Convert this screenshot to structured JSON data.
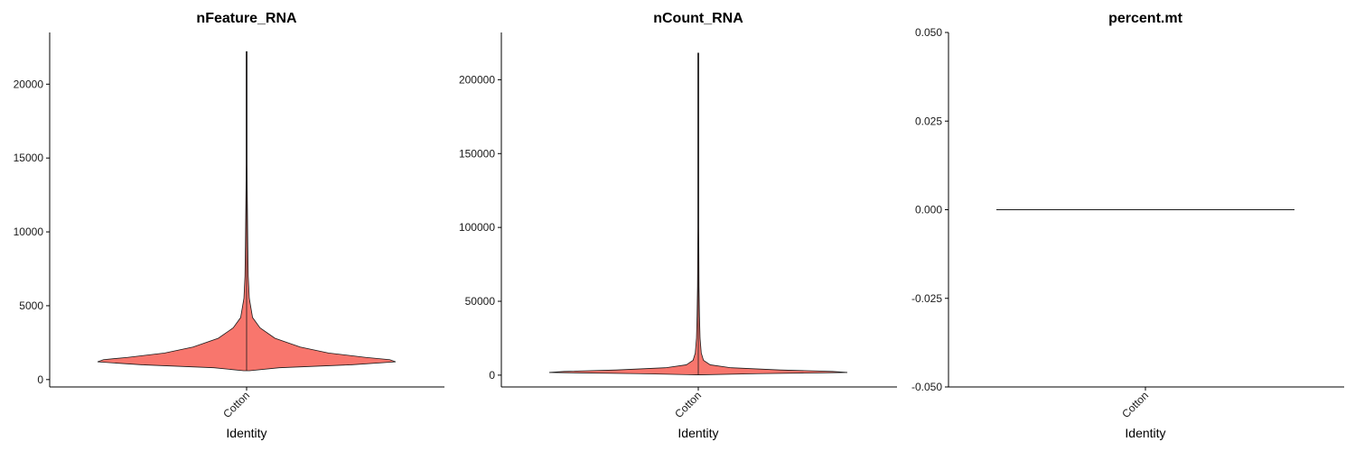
{
  "chart_data": [
    {
      "type": "violin",
      "title": "nFeature_RNA",
      "xlabel": "Identity",
      "ylabel": "",
      "categories": [
        "Cotton"
      ],
      "ylim": [
        -500,
        23500
      ],
      "yticks": [
        0,
        5000,
        10000,
        15000,
        20000
      ],
      "fill": "#F8766D",
      "series": [
        {
          "category": "Cotton",
          "min": 600,
          "max": 22200,
          "density": [
            [
              600,
              0.02
            ],
            [
              800,
              0.22
            ],
            [
              1000,
              0.7
            ],
            [
              1200,
              1.0
            ],
            [
              1350,
              0.96
            ],
            [
              1500,
              0.8
            ],
            [
              1800,
              0.55
            ],
            [
              2200,
              0.36
            ],
            [
              2800,
              0.19
            ],
            [
              3500,
              0.09
            ],
            [
              4200,
              0.04
            ],
            [
              5500,
              0.018
            ],
            [
              7000,
              0.011
            ],
            [
              9000,
              0.008
            ],
            [
              11000,
              0.006
            ],
            [
              13000,
              0.004
            ],
            [
              14600,
              0.003
            ],
            [
              16000,
              0.0015
            ],
            [
              22200,
              0.001
            ]
          ]
        }
      ]
    },
    {
      "type": "violin",
      "title": "nCount_RNA",
      "xlabel": "Identity",
      "ylabel": "",
      "categories": [
        "Cotton"
      ],
      "ylim": [
        -8000,
        232000
      ],
      "yticks": [
        0,
        50000,
        100000,
        150000,
        200000
      ],
      "fill": "#F8766D",
      "series": [
        {
          "category": "Cotton",
          "min": 200,
          "max": 218000,
          "density": [
            [
              200,
              0.01
            ],
            [
              1000,
              0.4
            ],
            [
              1800,
              1.0
            ],
            [
              2500,
              0.9
            ],
            [
              3500,
              0.55
            ],
            [
              5000,
              0.22
            ],
            [
              7000,
              0.08
            ],
            [
              10000,
              0.035
            ],
            [
              15000,
              0.02
            ],
            [
              25000,
              0.012
            ],
            [
              40000,
              0.008
            ],
            [
              60000,
              0.005
            ],
            [
              100000,
              0.002
            ],
            [
              218000,
              0.001
            ]
          ]
        }
      ]
    },
    {
      "type": "violin",
      "title": "percent.mt",
      "xlabel": "Identity",
      "ylabel": "",
      "categories": [
        "Cotton"
      ],
      "ylim": [
        -0.05,
        0.05
      ],
      "yticks": [
        -0.05,
        -0.025,
        0.0,
        0.025,
        0.05
      ],
      "yticks_labels": [
        "-0.050",
        "-0.025",
        "0.000",
        "0.025",
        "0.050"
      ],
      "fill": "#F8766D",
      "series": [
        {
          "category": "Cotton",
          "constant": 0
        }
      ]
    }
  ]
}
